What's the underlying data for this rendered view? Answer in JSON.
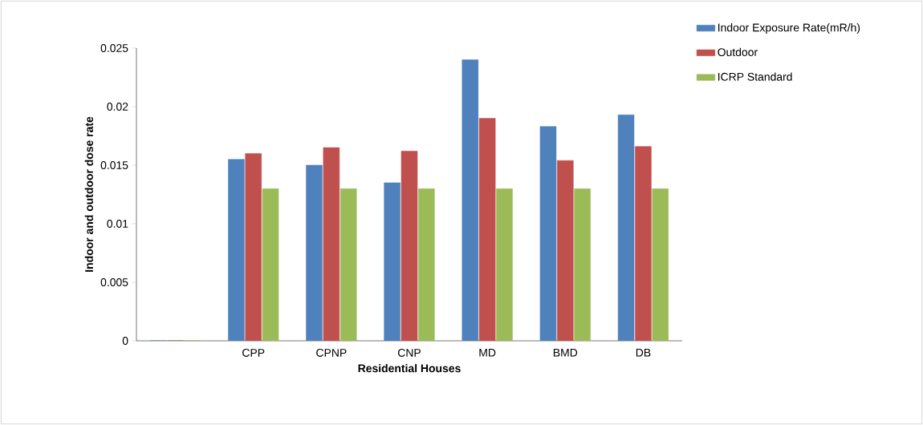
{
  "chart_data": {
    "type": "bar",
    "xlabel": "Residential  Houses",
    "ylabel": "Indoor and outdoor dose rate",
    "categories": [
      null,
      "CPP",
      "CPNP",
      "CNP",
      "MD",
      "BMD",
      "DB"
    ],
    "series": [
      {
        "name": "Indoor Exposure Rate(mR/h)",
        "color": "#4f81bd",
        "values": [
          0,
          0.0155,
          0.015,
          0.0135,
          0.024,
          0.0183,
          0.0193
        ]
      },
      {
        "name": "Outdoor",
        "color": "#c0504d",
        "values": [
          0,
          0.016,
          0.0165,
          0.0162,
          0.019,
          0.0154,
          0.0166
        ]
      },
      {
        "name": "ICRP Standard",
        "color": "#9bbb59",
        "values": [
          0,
          0.013,
          0.013,
          0.013,
          0.013,
          0.013,
          0.013
        ]
      }
    ],
    "ylim": [
      0,
      0.025
    ],
    "yticks": [
      0,
      0.005,
      0.01,
      0.015,
      0.02,
      0.025
    ],
    "grid": false,
    "legend": "top right"
  }
}
